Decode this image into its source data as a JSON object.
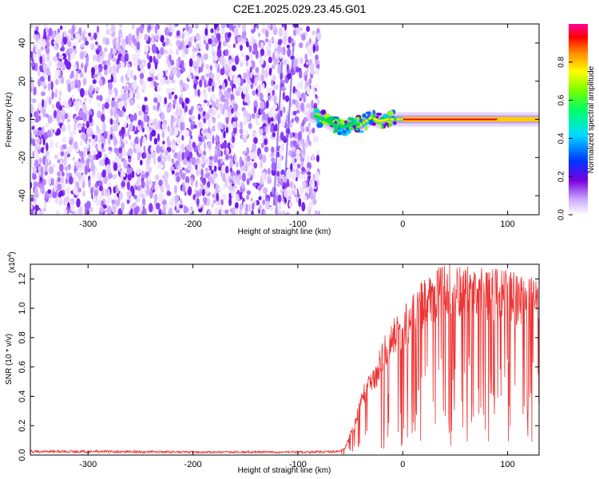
{
  "page_title": "C2E1.2025.029.23.45.G01",
  "colors": {
    "axis": "#000000",
    "snr_line": "#ee3333",
    "background": "#ffffff"
  },
  "chart_data": [
    {
      "type": "heatmap",
      "xlabel": "Height of straight line (km)",
      "ylabel": "Frequency (Hz)",
      "xlim": [
        -355,
        130
      ],
      "ylim": [
        -50,
        50
      ],
      "xticks": [
        -300,
        -200,
        -100,
        0,
        100
      ],
      "xtick_labels": [
        "-300",
        "-200",
        "-100",
        "0",
        "100"
      ],
      "yticks": [
        -40,
        -20,
        0,
        20,
        40
      ],
      "ytick_labels": [
        "-40",
        "-20",
        "0",
        "20",
        "40"
      ],
      "noise_region_x": [
        -355,
        -80
      ],
      "signal_track": {
        "x": [
          -85,
          -75,
          -65,
          -55,
          -48,
          -40,
          -30,
          -22,
          -15,
          -8,
          0,
          30,
          60,
          90,
          130
        ],
        "freq": [
          2,
          0,
          -3,
          -4,
          -2,
          -3,
          1,
          -1,
          0,
          0,
          0,
          0,
          0,
          0,
          0
        ]
      },
      "colorbar": {
        "label": "Normalized spectral amplitude",
        "range": [
          0,
          1
        ],
        "ticks": [
          0.0,
          0.2,
          0.4,
          0.6,
          0.8
        ],
        "tick_labels": [
          "0.0",
          "0.2",
          "0.4",
          "0.6",
          "0.8"
        ]
      }
    },
    {
      "type": "line",
      "xlabel": "Height of straight line (km)",
      "ylabel": "SNR (10 * v/v)",
      "y_multiplier": "(x10",
      "y_multiplier_exp": "4",
      "y_multiplier_close": ")",
      "xlim": [
        -355,
        130
      ],
      "ylim": [
        0,
        1.3
      ],
      "xticks": [
        -300,
        -200,
        -100,
        0,
        100
      ],
      "xtick_labels": [
        "-300",
        "-200",
        "-100",
        "0",
        "100"
      ],
      "yticks": [
        0.0,
        0.2,
        0.4,
        0.6,
        0.8,
        1.0,
        1.2
      ],
      "ytick_labels": [
        "0.0",
        "0.2",
        "0.4",
        "0.6",
        "0.8",
        "1.0",
        "1.2"
      ],
      "envelope": {
        "x": [
          -355,
          -300,
          -200,
          -100,
          -60,
          -55,
          -50,
          -45,
          -40,
          -35,
          -30,
          -25,
          -20,
          -10,
          0,
          10,
          20,
          30,
          40,
          60,
          80,
          100,
          115,
          130
        ],
        "y": [
          0.03,
          0.03,
          0.025,
          0.025,
          0.03,
          0.05,
          0.15,
          0.25,
          0.4,
          0.5,
          0.55,
          0.6,
          0.75,
          0.88,
          0.95,
          1.05,
          1.15,
          1.2,
          1.25,
          1.24,
          1.22,
          1.2,
          1.17,
          1.14
        ]
      }
    }
  ]
}
